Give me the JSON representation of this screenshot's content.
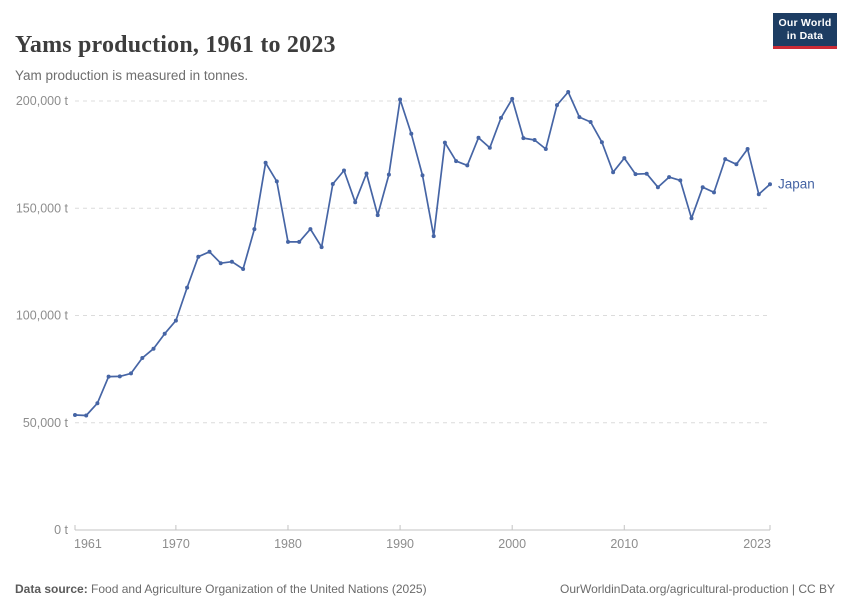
{
  "header": {
    "title": "Yams production, 1961 to 2023",
    "subtitle": "Yam production is measured in tonnes."
  },
  "logo": {
    "line1": "Our World",
    "line2": "in Data"
  },
  "chart_data": {
    "type": "line",
    "title": "Yams production, 1961 to 2023",
    "unit": "t",
    "xlabel": "",
    "ylabel": "",
    "xlim": [
      1961,
      2023
    ],
    "ylim": [
      0,
      200000
    ],
    "xticks": [
      1961,
      1970,
      1980,
      1990,
      2000,
      2010,
      2023
    ],
    "yticks": [
      0,
      50000,
      100000,
      150000,
      200000
    ],
    "grid": "horizontal-dashed",
    "legend_position": "end-of-line",
    "x": [
      1961,
      1962,
      1963,
      1964,
      1965,
      1966,
      1967,
      1968,
      1969,
      1970,
      1971,
      1972,
      1973,
      1974,
      1975,
      1976,
      1977,
      1978,
      1979,
      1980,
      1981,
      1982,
      1983,
      1984,
      1985,
      1986,
      1987,
      1988,
      1989,
      1990,
      1991,
      1992,
      1993,
      1994,
      1995,
      1996,
      1997,
      1998,
      1999,
      2000,
      2001,
      2002,
      2003,
      2004,
      2005,
      2006,
      2007,
      2008,
      2009,
      2010,
      2011,
      2012,
      2013,
      2014,
      2015,
      2016,
      2017,
      2018,
      2019,
      2020,
      2021,
      2022,
      2023
    ],
    "series": [
      {
        "name": "Japan",
        "color": "#4665a5",
        "values": [
          53600,
          53400,
          59100,
          71500,
          71600,
          73000,
          80200,
          84500,
          91500,
          97600,
          113000,
          127400,
          129700,
          124400,
          125100,
          121700,
          140300,
          171200,
          162500,
          134300,
          134300,
          140300,
          131900,
          161300,
          167600,
          152800,
          166200,
          146800,
          165700,
          200700,
          184700,
          165300,
          137000,
          180600,
          172000,
          170000,
          182900,
          178200,
          192100,
          201000,
          182700,
          181800,
          177600,
          198100,
          204200,
          192500,
          190200,
          180800,
          166800,
          173400,
          165900,
          166100,
          159800,
          164500,
          163000,
          145300,
          159800,
          157400,
          172900,
          170500,
          177600,
          156500,
          161200
        ]
      }
    ]
  },
  "footer": {
    "source_label": "Data source:",
    "source": "Food and Agriculture Organization of the United Nations (2025)",
    "credit": "OurWorldinData.org/agricultural-production | CC BY"
  },
  "colors": {
    "accent": "#4665a5",
    "logo_navy": "#1d3d63",
    "logo_red": "#cc2b36",
    "grid": "#dcdcdc",
    "axis": "#c3c3c3",
    "tick_text": "#8d8d8d",
    "title_text": "#3d3d3d",
    "subtitle_text": "#6e6e6e",
    "footer_text": "#6b6b6b"
  }
}
